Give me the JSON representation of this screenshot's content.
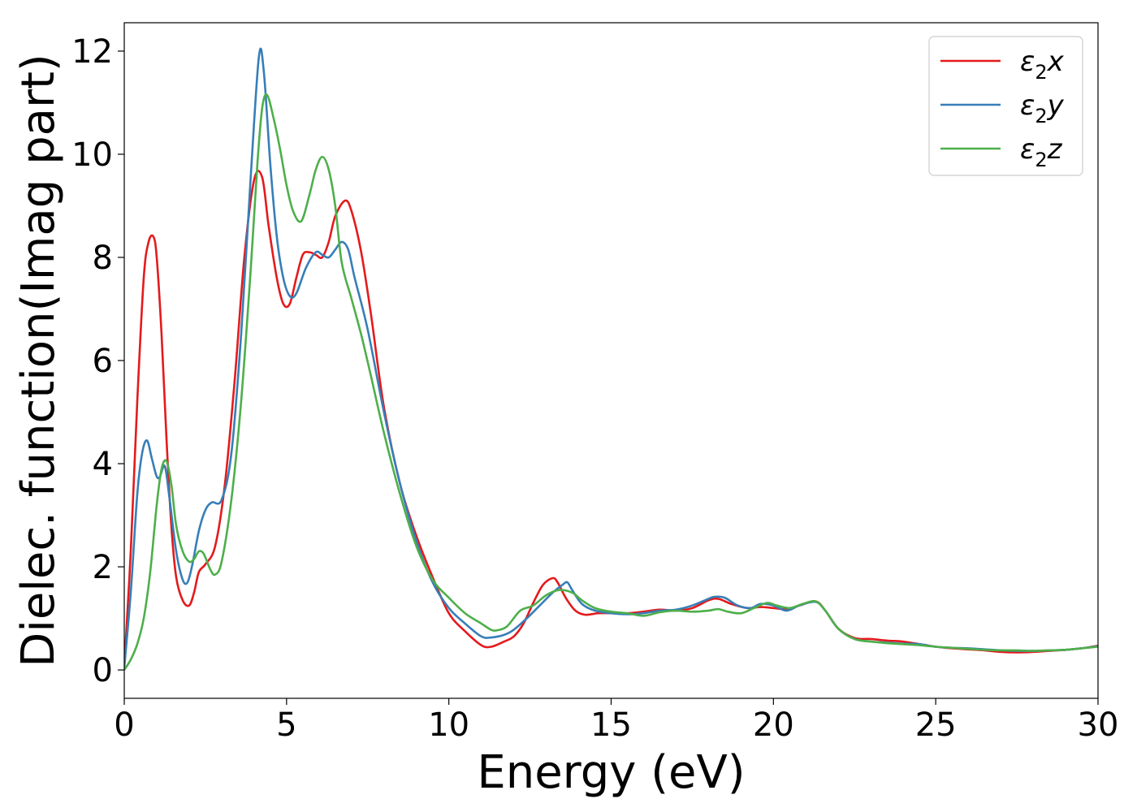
{
  "chart_data": {
    "type": "line",
    "title": "",
    "xlabel": "Energy (eV)",
    "ylabel": "Dielec. function(Imag part)",
    "xlim": [
      0,
      30
    ],
    "ylim": [
      -0.55,
      12.55
    ],
    "xticks": [
      0,
      5,
      10,
      15,
      20,
      25,
      30
    ],
    "yticks": [
      0,
      2,
      4,
      6,
      8,
      10,
      12
    ],
    "grid": false,
    "legend_position": "top-right",
    "series": [
      {
        "name": "ε2x",
        "legend_base": "ε",
        "legend_sub": "2",
        "legend_var": "x",
        "color": "#e41a1c",
        "x": [
          0,
          0.2,
          0.4,
          0.6,
          0.75,
          0.9,
          1.0,
          1.15,
          1.3,
          1.45,
          1.6,
          1.8,
          2.0,
          2.15,
          2.3,
          2.5,
          2.8,
          3.1,
          3.4,
          3.7,
          4.0,
          4.25,
          4.45,
          4.7,
          4.9,
          5.1,
          5.3,
          5.5,
          5.7,
          5.9,
          6.1,
          6.3,
          6.5,
          6.8,
          7.0,
          7.3,
          7.6,
          8.0,
          8.5,
          9.0,
          9.5,
          10.0,
          10.5,
          11.0,
          11.3,
          11.7,
          12.0,
          12.3,
          12.6,
          12.9,
          13.2,
          13.35,
          13.6,
          13.9,
          14.2,
          14.6,
          15.0,
          15.5,
          16.0,
          16.5,
          17.0,
          17.5,
          18.0,
          18.3,
          18.7,
          19.2,
          19.6,
          20.0,
          20.4,
          20.8,
          21.3,
          21.6,
          22.0,
          22.5,
          23.0,
          23.5,
          24.0,
          24.5,
          25.0,
          25.5,
          26.0,
          26.5,
          27.0,
          27.5,
          28.0,
          28.5,
          29.0,
          29.5,
          30.0
        ],
        "y": [
          0.05,
          2.3,
          5.2,
          7.6,
          8.3,
          8.4,
          8.0,
          6.5,
          4.5,
          2.8,
          1.8,
          1.35,
          1.25,
          1.5,
          1.9,
          2.05,
          2.4,
          3.6,
          5.6,
          8.0,
          9.5,
          9.55,
          8.6,
          7.6,
          7.1,
          7.1,
          7.6,
          8.05,
          8.1,
          8.05,
          8.0,
          8.3,
          8.8,
          9.1,
          8.9,
          8.1,
          6.9,
          5.1,
          3.6,
          2.6,
          1.8,
          1.1,
          0.75,
          0.48,
          0.45,
          0.55,
          0.65,
          0.9,
          1.3,
          1.65,
          1.78,
          1.7,
          1.4,
          1.15,
          1.07,
          1.1,
          1.1,
          1.1,
          1.13,
          1.17,
          1.15,
          1.2,
          1.35,
          1.38,
          1.28,
          1.2,
          1.22,
          1.2,
          1.18,
          1.25,
          1.33,
          1.15,
          0.8,
          0.62,
          0.6,
          0.57,
          0.55,
          0.5,
          0.45,
          0.42,
          0.4,
          0.38,
          0.35,
          0.34,
          0.35,
          0.37,
          0.39,
          0.42,
          0.47
        ]
      },
      {
        "name": "ε2y",
        "legend_base": "ε",
        "legend_sub": "2",
        "legend_var": "y",
        "color": "#377eb8",
        "x": [
          0,
          0.2,
          0.4,
          0.55,
          0.7,
          0.85,
          1.0,
          1.1,
          1.25,
          1.4,
          1.6,
          1.8,
          1.95,
          2.1,
          2.3,
          2.5,
          2.7,
          3.0,
          3.3,
          3.6,
          3.9,
          4.15,
          4.3,
          4.5,
          4.7,
          4.9,
          5.1,
          5.3,
          5.6,
          5.9,
          6.1,
          6.3,
          6.5,
          6.7,
          6.9,
          7.1,
          7.5,
          8.0,
          8.5,
          9.0,
          9.5,
          10.0,
          10.5,
          11.0,
          11.3,
          11.7,
          12.0,
          12.4,
          12.8,
          13.2,
          13.5,
          13.65,
          13.8,
          14.1,
          14.5,
          15.0,
          15.5,
          16.0,
          16.5,
          17.0,
          17.5,
          18.0,
          18.2,
          18.5,
          18.9,
          19.3,
          19.6,
          20.0,
          20.4,
          20.8,
          21.3,
          21.6,
          22.0,
          22.5,
          23.0,
          23.5,
          24.0,
          24.5,
          25.0,
          25.5,
          26.0,
          26.5,
          27.0,
          27.5,
          28.0,
          28.5,
          29.0,
          29.5,
          30.0
        ],
        "y": [
          0.05,
          1.5,
          3.4,
          4.2,
          4.45,
          4.1,
          3.75,
          3.75,
          3.95,
          3.3,
          2.3,
          1.75,
          1.7,
          2.05,
          2.7,
          3.1,
          3.25,
          3.3,
          4.2,
          6.5,
          9.6,
          11.9,
          11.6,
          9.8,
          8.4,
          7.6,
          7.25,
          7.3,
          7.8,
          8.1,
          8.05,
          8.0,
          8.15,
          8.3,
          8.15,
          7.6,
          6.6,
          5.0,
          3.6,
          2.5,
          1.7,
          1.2,
          0.9,
          0.65,
          0.63,
          0.68,
          0.78,
          1.0,
          1.25,
          1.5,
          1.65,
          1.7,
          1.55,
          1.28,
          1.15,
          1.1,
          1.08,
          1.1,
          1.15,
          1.17,
          1.25,
          1.38,
          1.42,
          1.4,
          1.25,
          1.2,
          1.28,
          1.25,
          1.15,
          1.25,
          1.32,
          1.15,
          0.8,
          0.6,
          0.55,
          0.53,
          0.51,
          0.5,
          0.45,
          0.43,
          0.42,
          0.4,
          0.38,
          0.37,
          0.37,
          0.38,
          0.39,
          0.42,
          0.46
        ]
      },
      {
        "name": "ε2z",
        "legend_base": "ε",
        "legend_sub": "2",
        "legend_var": "z",
        "color": "#4daf4a",
        "x": [
          0,
          0.2,
          0.4,
          0.6,
          0.8,
          1.0,
          1.15,
          1.3,
          1.45,
          1.6,
          1.8,
          2.0,
          2.15,
          2.3,
          2.45,
          2.65,
          2.8,
          3.0,
          3.3,
          3.6,
          3.9,
          4.1,
          4.25,
          4.4,
          4.6,
          4.8,
          5.0,
          5.2,
          5.45,
          5.7,
          5.9,
          6.1,
          6.3,
          6.5,
          6.7,
          7.0,
          7.3,
          7.6,
          8.0,
          8.5,
          9.0,
          9.5,
          10.0,
          10.5,
          11.0,
          11.3,
          11.5,
          11.8,
          12.2,
          12.6,
          13.0,
          13.4,
          13.8,
          14.1,
          14.5,
          15.0,
          15.5,
          16.0,
          16.5,
          17.0,
          17.5,
          18.0,
          18.3,
          18.6,
          19.0,
          19.4,
          19.8,
          20.1,
          20.5,
          20.9,
          21.3,
          21.6,
          22.0,
          22.5,
          23.0,
          23.5,
          24.0,
          24.5,
          25.0,
          25.5,
          26.0,
          26.5,
          27.0,
          27.5,
          28.0,
          28.5,
          29.0,
          29.5,
          30.0
        ],
        "y": [
          0.0,
          0.2,
          0.5,
          1.0,
          1.9,
          3.2,
          3.9,
          4.05,
          3.6,
          2.8,
          2.3,
          2.1,
          2.15,
          2.3,
          2.25,
          1.95,
          1.85,
          2.1,
          3.3,
          5.2,
          7.8,
          9.8,
          10.9,
          11.15,
          10.7,
          10.1,
          9.4,
          8.9,
          8.7,
          9.2,
          9.7,
          9.95,
          9.7,
          9.0,
          7.9,
          7.2,
          6.5,
          5.7,
          4.6,
          3.4,
          2.4,
          1.75,
          1.4,
          1.1,
          0.9,
          0.78,
          0.77,
          0.85,
          1.15,
          1.25,
          1.45,
          1.55,
          1.5,
          1.35,
          1.2,
          1.13,
          1.1,
          1.05,
          1.12,
          1.15,
          1.13,
          1.15,
          1.18,
          1.13,
          1.1,
          1.2,
          1.3,
          1.25,
          1.2,
          1.28,
          1.33,
          1.15,
          0.8,
          0.6,
          0.55,
          0.52,
          0.5,
          0.48,
          0.45,
          0.43,
          0.41,
          0.39,
          0.38,
          0.38,
          0.37,
          0.38,
          0.39,
          0.42,
          0.45
        ]
      }
    ]
  }
}
